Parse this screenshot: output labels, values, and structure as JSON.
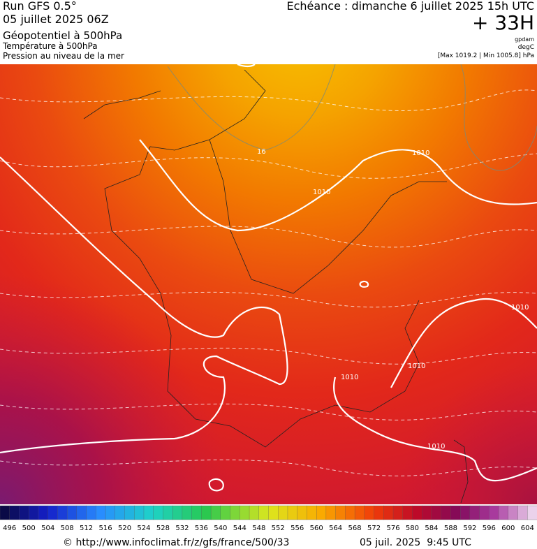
{
  "header": {
    "run": "Run GFS 0.5°",
    "date": "05 juillet 2025 06Z",
    "field1": "Géopotentiel à 500hPa",
    "field2": "Température à 500hPa",
    "field3": "Pression au niveau de la mer",
    "echeance": "Echéance : dimanche 6 juillet 2025 15h UTC",
    "lead": "+ 33H",
    "unit1": "gpdam",
    "unit2": "degC",
    "range": "[Max 1019.2 | Min 1005.8] hPa"
  },
  "map": {
    "labels": [
      "1010",
      "1010",
      "1010",
      "1010",
      "1010",
      "1010",
      "16"
    ]
  },
  "colorbar": {
    "ticks": [
      496,
      500,
      504,
      508,
      512,
      516,
      520,
      524,
      528,
      532,
      536,
      540,
      544,
      548,
      552,
      556,
      560,
      564,
      568,
      572,
      576,
      580,
      584,
      588,
      592,
      596,
      600,
      604
    ]
  },
  "footer": {
    "url": "© http://www.infoclimat.fr/z/gfs/france/500/33",
    "time": "05 juil. 2025  9:45 UTC"
  }
}
